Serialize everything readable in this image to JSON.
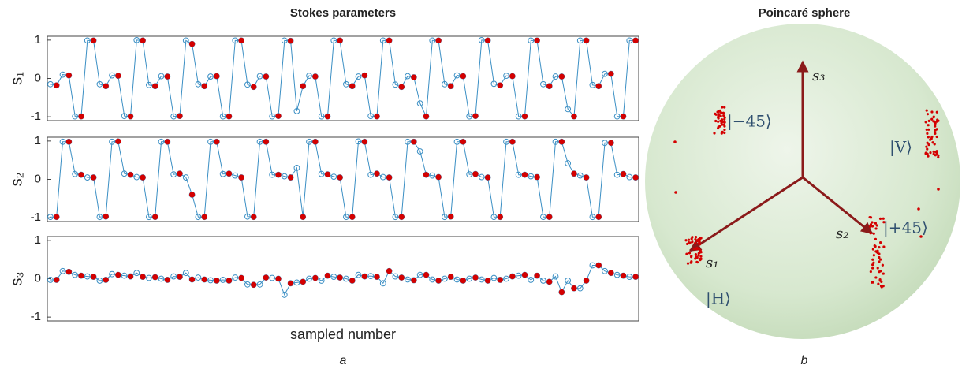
{
  "chart_data": [
    {
      "type": "line",
      "title": "Stokes parameters",
      "xlabel": "sampled number",
      "caption": "a",
      "panels": [
        {
          "ylabel": "s₁",
          "ylim": [
            -1.1,
            1.1
          ],
          "yticks": [
            -1,
            0,
            1
          ],
          "series": [
            {
              "color": "#3b8fc4",
              "line": true,
              "marker": "open",
              "values": [
                -0.15,
                -0.18,
                0.1,
                0.08,
                -0.99,
                -0.99,
                0.99,
                0.99,
                -0.15,
                -0.2,
                0.08,
                0.07,
                -0.98,
                -0.99,
                1,
                0.99,
                -0.17,
                -0.2,
                0.06,
                0.05,
                -0.99,
                -0.98,
                0.99,
                0.9,
                -0.15,
                -0.2,
                0.05,
                0.06,
                -0.99,
                -0.99,
                0.99,
                0.99,
                -0.16,
                -0.22,
                0.06,
                0.05,
                -0.99,
                -0.98,
                0.99,
                0.98,
                -0.85,
                -0.2,
                0.07,
                0.05,
                -0.99,
                -0.99,
                0.99,
                0.99,
                -0.15,
                -0.2,
                0.05,
                0.08,
                -0.98,
                -0.99,
                0.99,
                0.99,
                -0.16,
                -0.22,
                0.06,
                0.03,
                -0.65,
                -0.99,
                0.99,
                0.99,
                -0.15,
                -0.2,
                0.08,
                0.06,
                -0.99,
                -0.98,
                1,
                0.99,
                -0.14,
                -0.18,
                0.07,
                0.06,
                -0.99,
                -0.99,
                0.99,
                0.99,
                -0.15,
                -0.2,
                0.05,
                0.05,
                -0.8,
                -0.99,
                0.99,
                0.99,
                -0.17,
                -0.2,
                0.12,
                0.12,
                -0.99,
                -0.99,
                0.99,
                0.99
              ]
            },
            {
              "color": "#d40000",
              "line": false,
              "marker": "filled",
              "values": [
                null,
                -0.18,
                null,
                0.08,
                null,
                -0.99,
                null,
                0.99,
                null,
                -0.2,
                null,
                0.07,
                null,
                -0.99,
                null,
                0.99,
                null,
                -0.2,
                null,
                0.05,
                null,
                -0.98,
                null,
                0.9,
                null,
                -0.2,
                null,
                0.06,
                null,
                -0.99,
                null,
                0.99,
                null,
                -0.22,
                null,
                0.05,
                null,
                -0.98,
                null,
                0.98,
                null,
                -0.2,
                null,
                0.05,
                null,
                -0.99,
                null,
                0.99,
                null,
                -0.2,
                null,
                0.08,
                null,
                -0.99,
                null,
                0.99,
                null,
                -0.22,
                null,
                0.03,
                null,
                -0.99,
                null,
                0.99,
                null,
                -0.2,
                null,
                0.06,
                null,
                -0.98,
                null,
                0.99,
                null,
                -0.18,
                null,
                0.06,
                null,
                -0.99,
                null,
                0.99,
                null,
                -0.2,
                null,
                0.05,
                null,
                -0.99,
                null,
                0.99,
                null,
                -0.2,
                null,
                0.12,
                null,
                -0.99,
                null,
                0.99
              ]
            }
          ]
        },
        {
          "ylabel": "s₂",
          "ylim": [
            -1.1,
            1.1
          ],
          "yticks": [
            -1,
            0,
            1
          ],
          "series": [
            {
              "color": "#3b8fc4",
              "line": true,
              "marker": "open",
              "values": [
                -0.98,
                -0.98,
                0.98,
                0.98,
                0.14,
                0.12,
                0.05,
                0.05,
                -0.98,
                -0.97,
                0.98,
                0.99,
                0.15,
                0.12,
                0.06,
                0.05,
                -0.98,
                -0.98,
                0.98,
                0.98,
                0.13,
                0.15,
                0.05,
                -0.4,
                -0.98,
                -0.98,
                0.98,
                0.98,
                0.14,
                0.15,
                0.1,
                0.05,
                -0.97,
                -0.98,
                0.98,
                0.98,
                0.12,
                0.12,
                0.08,
                0.05,
                0.3,
                -0.98,
                0.98,
                0.98,
                0.14,
                0.13,
                0.07,
                0.05,
                -0.98,
                -0.98,
                0.99,
                0.98,
                0.12,
                0.15,
                0.06,
                0.05,
                -0.98,
                -0.98,
                0.98,
                0.98,
                0.73,
                0.12,
                0.1,
                0.06,
                -0.98,
                -0.97,
                0.98,
                0.98,
                0.13,
                0.14,
                0.06,
                0.05,
                -0.98,
                -0.98,
                0.98,
                0.98,
                0.12,
                0.12,
                0.08,
                0.06,
                -0.98,
                -0.98,
                0.98,
                0.98,
                0.42,
                0.15,
                0.1,
                0.05,
                -0.98,
                -0.98,
                0.95,
                0.95,
                0.12,
                0.14,
                0.06,
                0.05
              ]
            },
            {
              "color": "#d40000",
              "line": false,
              "marker": "filled",
              "values": [
                null,
                -0.98,
                null,
                0.98,
                null,
                0.12,
                null,
                0.05,
                null,
                -0.97,
                null,
                0.99,
                null,
                0.12,
                null,
                0.05,
                null,
                -0.98,
                null,
                0.98,
                null,
                0.15,
                null,
                -0.4,
                null,
                -0.98,
                null,
                0.98,
                null,
                0.15,
                null,
                0.05,
                null,
                -0.98,
                null,
                0.98,
                null,
                0.12,
                null,
                0.05,
                null,
                -0.98,
                null,
                0.98,
                null,
                0.13,
                null,
                0.05,
                null,
                -0.98,
                null,
                0.98,
                null,
                0.15,
                null,
                0.05,
                null,
                -0.98,
                null,
                0.98,
                null,
                0.12,
                null,
                0.06,
                null,
                -0.97,
                null,
                0.98,
                null,
                0.14,
                null,
                0.05,
                null,
                -0.98,
                null,
                0.98,
                null,
                0.12,
                null,
                0.06,
                null,
                -0.98,
                null,
                0.98,
                null,
                0.15,
                null,
                0.05,
                null,
                -0.98,
                null,
                0.95,
                null,
                0.14,
                null,
                0.05
              ]
            }
          ]
        },
        {
          "ylabel": "s₃",
          "ylim": [
            -1.1,
            1.1
          ],
          "yticks": [
            -1,
            0,
            1
          ],
          "series": [
            {
              "color": "#3b8fc4",
              "line": true,
              "marker": "open",
              "values": [
                -0.03,
                -0.03,
                0.2,
                0.18,
                0.1,
                0.08,
                0.06,
                0.05,
                -0.05,
                -0.03,
                0.12,
                0.1,
                0.08,
                0.06,
                0.15,
                0.05,
                0.02,
                0.04,
                0,
                -0.03,
                0.06,
                0.05,
                0.15,
                -0.02,
                0.03,
                -0.02,
                -0.04,
                -0.05,
                -0.03,
                -0.05,
                0.03,
                0.02,
                -0.15,
                -0.16,
                -0.15,
                0.03,
                0.02,
                0,
                -0.42,
                -0.12,
                -0.1,
                -0.08,
                0,
                0.02,
                -0.05,
                0.08,
                0.05,
                0.03,
                0,
                -0.05,
                0.1,
                0.06,
                0.07,
                0.05,
                -0.12,
                0.2,
                0.06,
                0.03,
                -0.02,
                -0.04,
                0.1,
                0.1,
                -0.02,
                -0.05,
                0,
                0.05,
                -0.02,
                -0.05,
                0,
                0.03,
                -0.02,
                -0.05,
                0.02,
                -0.03,
                0,
                0.06,
                0.08,
                0.1,
                -0.03,
                0.08,
                -0.05,
                -0.08,
                0.06,
                -0.35,
                -0.05,
                -0.25,
                -0.25,
                -0.05,
                0.35,
                0.35,
                0.2,
                0.15,
                0.1,
                0.08,
                0.05,
                0.05
              ]
            },
            {
              "color": "#d40000",
              "line": false,
              "marker": "filled",
              "values": [
                null,
                -0.03,
                null,
                0.18,
                null,
                0.08,
                null,
                0.05,
                null,
                -0.03,
                null,
                0.1,
                null,
                0.06,
                null,
                0.05,
                null,
                0.04,
                null,
                -0.03,
                null,
                0.05,
                null,
                -0.02,
                null,
                -0.02,
                null,
                -0.05,
                null,
                -0.05,
                null,
                0.02,
                null,
                -0.16,
                null,
                0.03,
                null,
                0,
                null,
                -0.12,
                null,
                -0.08,
                null,
                0.02,
                null,
                0.08,
                null,
                0.03,
                null,
                -0.05,
                null,
                0.06,
                null,
                0.05,
                null,
                0.2,
                null,
                0.03,
                null,
                -0.04,
                null,
                0.1,
                null,
                -0.05,
                null,
                0.05,
                null,
                -0.05,
                null,
                0.03,
                null,
                -0.05,
                null,
                -0.03,
                null,
                0.06,
                null,
                0.1,
                null,
                0.08,
                null,
                -0.08,
                null,
                -0.35,
                null,
                -0.25,
                null,
                -0.05,
                null,
                0.35,
                null,
                0.15,
                null,
                0.08,
                null,
                0.05
              ]
            }
          ]
        }
      ]
    },
    {
      "type": "sphere",
      "title": "Poincaré sphere",
      "caption": "b",
      "axis_labels": [
        "s₃",
        "s₁",
        "s₂"
      ],
      "state_labels": [
        "|−45⟩",
        "|V⟩",
        "|+45⟩",
        "|H⟩"
      ]
    }
  ]
}
